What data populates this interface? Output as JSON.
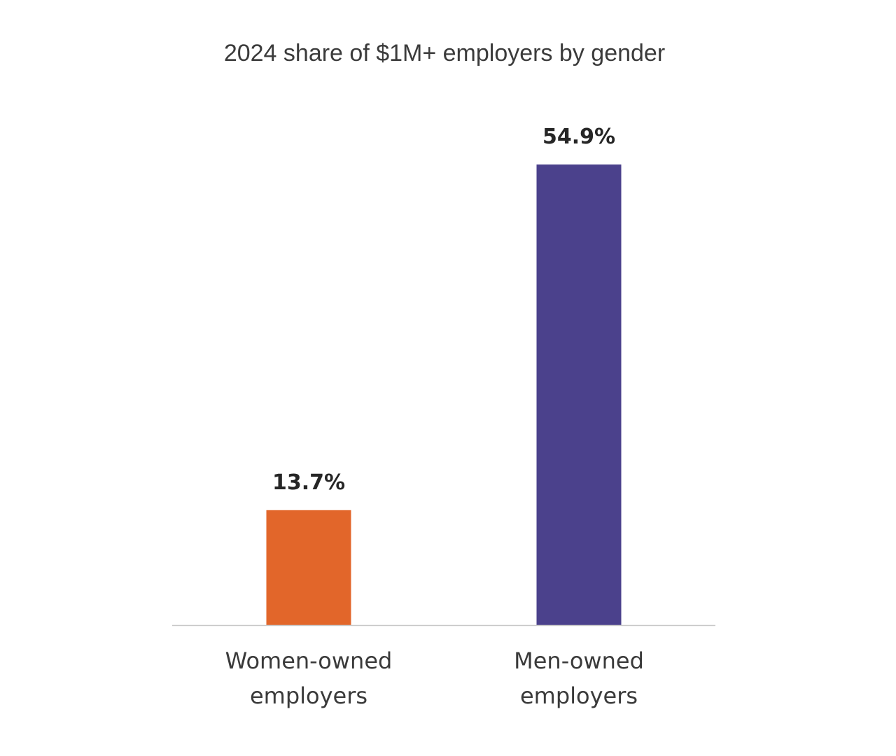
{
  "chart_data": {
    "type": "bar",
    "title": "2024 share of $1M+ employers by gender",
    "categories": [
      [
        "Women-owned",
        "employers"
      ],
      [
        "Men-owned",
        "employers"
      ]
    ],
    "values": [
      13.7,
      54.9
    ],
    "value_labels": [
      "13.7%",
      "54.9%"
    ],
    "bar_colors": [
      "#e2662a",
      "#4b418c"
    ],
    "ylim": [
      0,
      54.9
    ],
    "grid": false,
    "legend": "none",
    "axis_color": "#c8c8c8"
  }
}
